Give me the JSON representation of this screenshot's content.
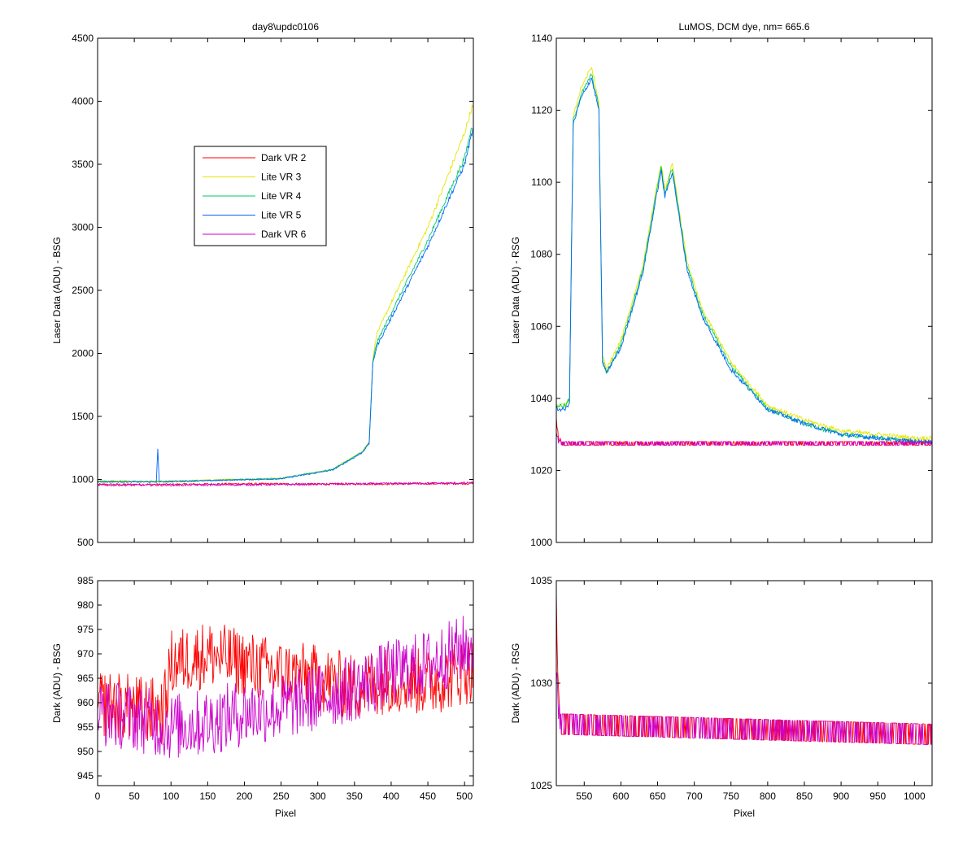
{
  "chart_data": [
    {
      "id": "top-left",
      "type": "line",
      "title": "day8\\updc0106",
      "xlabel": "",
      "ylabel": "Laser Data (ADU) - BSG",
      "xlim": [
        0,
        512
      ],
      "ylim": [
        500,
        4500
      ],
      "yticks": [
        "500",
        "1000",
        "1500",
        "2000",
        "2500",
        "3000",
        "3500",
        "4000",
        "4500"
      ],
      "legend": {
        "placement": "upper-left-center",
        "entries": [
          {
            "label": "Dark VR 2",
            "color": "#ff0000"
          },
          {
            "label": "Lite VR 3",
            "color": "#e6e600"
          },
          {
            "label": "Lite VR 4",
            "color": "#00cc66"
          },
          {
            "label": "Lite VR 5",
            "color": "#0066ff"
          },
          {
            "label": "Dark VR 6",
            "color": "#cc00cc"
          }
        ]
      },
      "series": [
        {
          "name": "Dark VR 2",
          "color": "#ff0000",
          "x": [
            0,
            100,
            200,
            300,
            400,
            512
          ],
          "y": [
            960,
            960,
            965,
            963,
            965,
            968
          ]
        },
        {
          "name": "Lite VR 3",
          "color": "#e6e600",
          "x": [
            0,
            80,
            150,
            250,
            320,
            360,
            370,
            375,
            380,
            400,
            450,
            500,
            510
          ],
          "y": [
            990,
            985,
            995,
            1010,
            1080,
            1220,
            1300,
            1950,
            2150,
            2400,
            3000,
            3750,
            3950
          ]
        },
        {
          "name": "Lite VR 4",
          "color": "#00cc66",
          "x": [
            0,
            80,
            150,
            250,
            320,
            360,
            370,
            375,
            380,
            400,
            450,
            500,
            510
          ],
          "y": [
            985,
            982,
            992,
            1008,
            1078,
            1215,
            1290,
            1930,
            2080,
            2320,
            2900,
            3550,
            3800
          ]
        },
        {
          "name": "Lite VR 5",
          "color": "#0066ff",
          "x": [
            0,
            80,
            82,
            84,
            150,
            250,
            320,
            360,
            370,
            375,
            380,
            400,
            450,
            500,
            510
          ],
          "y": [
            980,
            980,
            1240,
            980,
            990,
            1005,
            1075,
            1210,
            1285,
            1920,
            2050,
            2280,
            2850,
            3500,
            3750
          ]
        },
        {
          "name": "Dark VR 6",
          "color": "#cc00cc",
          "x": [
            0,
            100,
            200,
            300,
            400,
            512
          ],
          "y": [
            955,
            955,
            958,
            962,
            967,
            972
          ]
        }
      ]
    },
    {
      "id": "top-right",
      "type": "line",
      "title": "LuMOS, DCM dye, nm= 665.6",
      "xlabel": "",
      "ylabel": "Laser Data (ADU) - RSG",
      "xlim": [
        512,
        1024
      ],
      "ylim": [
        1000,
        1140
      ],
      "yticks": [
        "1000",
        "1020",
        "1040",
        "1060",
        "1080",
        "1100",
        "1120",
        "1140"
      ],
      "series": [
        {
          "name": "Lite VR 3",
          "color": "#e6e600",
          "x": [
            512,
            525,
            530,
            535,
            545,
            560,
            570,
            575,
            580,
            600,
            630,
            650,
            655,
            660,
            670,
            690,
            710,
            750,
            800,
            850,
            900,
            1000,
            1024
          ],
          "y": [
            1038,
            1038,
            1040,
            1118,
            1126,
            1132,
            1122,
            1052,
            1048,
            1056,
            1077,
            1100,
            1105,
            1098,
            1105,
            1078,
            1065,
            1050,
            1038,
            1034,
            1031,
            1029,
            1029
          ]
        },
        {
          "name": "Lite VR 4",
          "color": "#00cc66",
          "x": [
            512,
            525,
            530,
            535,
            545,
            560,
            570,
            575,
            580,
            600,
            630,
            650,
            655,
            660,
            670,
            690,
            710,
            750,
            800,
            850,
            900,
            1000,
            1024
          ],
          "y": [
            1038,
            1038,
            1040,
            1117,
            1124,
            1130,
            1121,
            1051,
            1047,
            1055,
            1076,
            1099,
            1104,
            1097,
            1104,
            1077,
            1064,
            1049,
            1037,
            1033,
            1030,
            1028,
            1028
          ]
        },
        {
          "name": "Lite VR 5",
          "color": "#0066ff",
          "x": [
            512,
            525,
            530,
            535,
            545,
            560,
            570,
            575,
            580,
            600,
            630,
            650,
            655,
            660,
            670,
            690,
            710,
            750,
            800,
            850,
            900,
            1000,
            1024
          ],
          "y": [
            1037,
            1037,
            1039,
            1116,
            1123,
            1129,
            1120,
            1050,
            1047,
            1054,
            1075,
            1098,
            1103,
            1096,
            1103,
            1076,
            1063,
            1048,
            1037,
            1033,
            1030,
            1028,
            1028
          ]
        },
        {
          "name": "Dark VR 2",
          "color": "#ff0000",
          "x": [
            512,
            515,
            520,
            600,
            700,
            800,
            900,
            1024
          ],
          "y": [
            1034,
            1029,
            1027.5,
            1027.5,
            1027.5,
            1027.5,
            1027.5,
            1027.5
          ]
        },
        {
          "name": "Dark VR 6",
          "color": "#cc00cc",
          "x": [
            512,
            515,
            520,
            600,
            700,
            800,
            900,
            1024
          ],
          "y": [
            1031,
            1028,
            1027.5,
            1027.5,
            1027.5,
            1027.5,
            1027.5,
            1027.5
          ]
        }
      ]
    },
    {
      "id": "bottom-left",
      "type": "line",
      "title": "",
      "xlabel": "Pixel",
      "ylabel": "Dark (ADU) - BSG",
      "xlim": [
        0,
        512
      ],
      "ylim": [
        943,
        985
      ],
      "xticks": [
        "0",
        "50",
        "100",
        "150",
        "200",
        "250",
        "300",
        "350",
        "400",
        "450",
        "500"
      ],
      "yticks": [
        "945",
        "950",
        "955",
        "960",
        "965",
        "970",
        "975",
        "980",
        "985"
      ],
      "series": [
        {
          "name": "Dark VR 2",
          "color": "#ff0000",
          "x": [
            0,
            90,
            100,
            150,
            200,
            250,
            300,
            350,
            400,
            450,
            512
          ],
          "y": [
            960,
            958,
            968,
            970,
            968,
            966,
            965,
            963,
            965,
            964,
            967
          ]
        },
        {
          "name": "Dark VR 6",
          "color": "#cc00cc",
          "x": [
            0,
            50,
            100,
            150,
            200,
            250,
            300,
            350,
            400,
            450,
            512
          ],
          "y": [
            958,
            957,
            955,
            956,
            958,
            959,
            961,
            963,
            966,
            968,
            972
          ]
        }
      ]
    },
    {
      "id": "bottom-right",
      "type": "line",
      "title": "",
      "xlabel": "Pixel",
      "ylabel": "Dark (ADU) - RSG",
      "xlim": [
        512,
        1024
      ],
      "ylim": [
        1025,
        1035
      ],
      "xticks": [
        "550",
        "600",
        "650",
        "700",
        "750",
        "800",
        "850",
        "900",
        "950",
        "1000"
      ],
      "yticks": [
        "1025",
        "1030",
        "1035"
      ],
      "series": [
        {
          "name": "Dark VR 2",
          "color": "#ff0000",
          "x": [
            512,
            514,
            518,
            1024
          ],
          "y": [
            1034,
            1031,
            1028,
            1027.5
          ]
        },
        {
          "name": "Dark VR 6",
          "color": "#cc00cc",
          "x": [
            512,
            514,
            518,
            1024
          ],
          "y": [
            1031,
            1029,
            1028,
            1027.5
          ]
        }
      ]
    }
  ]
}
